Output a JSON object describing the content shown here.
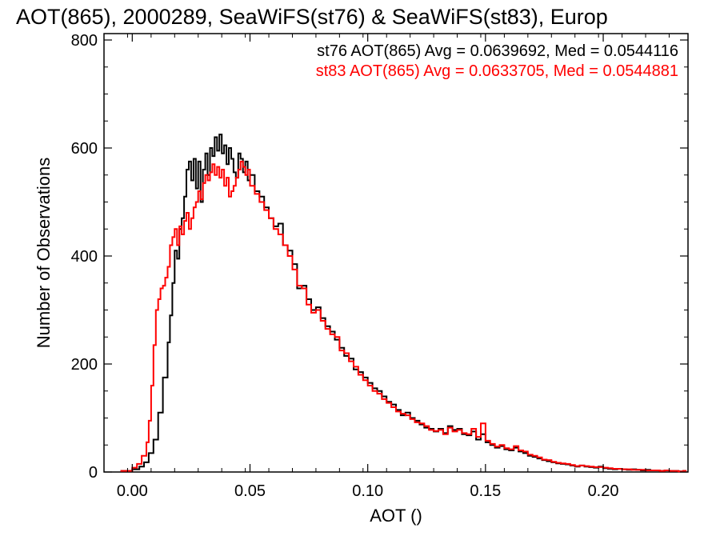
{
  "chart_data": {
    "type": "histogram-step",
    "title": "AOT(865), 2000289, SeaWiFS(st76) & SeaWiFS(st83), Europ",
    "xlabel": "AOT ()",
    "ylabel": "Number of Observations",
    "xlim": [
      -0.012,
      0.236
    ],
    "ylim": [
      0,
      800
    ],
    "xticks": [
      0.0,
      0.05,
      0.1,
      0.15,
      0.2
    ],
    "xtick_labels": [
      "0.00",
      "0.05",
      "0.10",
      "0.15",
      "0.20"
    ],
    "yticks": [
      0,
      200,
      400,
      600,
      800
    ],
    "ytick_labels": [
      "0",
      "200",
      "400",
      "600",
      "800"
    ],
    "legend_placement": "top-right",
    "grid": false,
    "colors": {
      "axes": "#000000"
    },
    "series": [
      {
        "name": "st76 AOT(865) Avg = 0.0639692, Med = 0.0544116",
        "color": "#000000",
        "points": [
          [
            -0.005,
            2
          ],
          [
            0.0,
            5
          ],
          [
            0.003,
            10
          ],
          [
            0.005,
            18
          ],
          [
            0.007,
            35
          ],
          [
            0.009,
            60
          ],
          [
            0.011,
            110
          ],
          [
            0.013,
            175
          ],
          [
            0.015,
            240
          ],
          [
            0.016,
            290
          ],
          [
            0.017,
            350
          ],
          [
            0.018,
            410
          ],
          [
            0.019,
            395
          ],
          [
            0.02,
            450
          ],
          [
            0.021,
            470
          ],
          [
            0.022,
            510
          ],
          [
            0.023,
            560
          ],
          [
            0.024,
            575
          ],
          [
            0.025,
            540
          ],
          [
            0.026,
            580
          ],
          [
            0.027,
            525
          ],
          [
            0.028,
            575
          ],
          [
            0.029,
            500
          ],
          [
            0.03,
            560
          ],
          [
            0.031,
            590
          ],
          [
            0.032,
            550
          ],
          [
            0.033,
            600
          ],
          [
            0.034,
            585
          ],
          [
            0.035,
            620
          ],
          [
            0.036,
            595
          ],
          [
            0.037,
            625
          ],
          [
            0.038,
            590
          ],
          [
            0.039,
            605
          ],
          [
            0.04,
            570
          ],
          [
            0.041,
            600
          ],
          [
            0.042,
            580
          ],
          [
            0.043,
            555
          ],
          [
            0.044,
            545
          ],
          [
            0.045,
            590
          ],
          [
            0.046,
            580
          ],
          [
            0.047,
            555
          ],
          [
            0.048,
            575
          ],
          [
            0.049,
            540
          ],
          [
            0.05,
            550
          ],
          [
            0.052,
            520
          ],
          [
            0.054,
            510
          ],
          [
            0.056,
            490
          ],
          [
            0.058,
            470
          ],
          [
            0.06,
            455
          ],
          [
            0.062,
            460
          ],
          [
            0.064,
            420
          ],
          [
            0.066,
            410
          ],
          [
            0.068,
            385
          ],
          [
            0.07,
            340
          ],
          [
            0.072,
            345
          ],
          [
            0.074,
            320
          ],
          [
            0.076,
            300
          ],
          [
            0.078,
            305
          ],
          [
            0.08,
            285
          ],
          [
            0.082,
            270
          ],
          [
            0.084,
            260
          ],
          [
            0.086,
            245
          ],
          [
            0.088,
            230
          ],
          [
            0.09,
            215
          ],
          [
            0.092,
            210
          ],
          [
            0.094,
            190
          ],
          [
            0.096,
            185
          ],
          [
            0.098,
            175
          ],
          [
            0.1,
            165
          ],
          [
            0.102,
            155
          ],
          [
            0.104,
            150
          ],
          [
            0.106,
            140
          ],
          [
            0.108,
            130
          ],
          [
            0.11,
            125
          ],
          [
            0.112,
            115
          ],
          [
            0.114,
            105
          ],
          [
            0.116,
            110
          ],
          [
            0.118,
            100
          ],
          [
            0.12,
            95
          ],
          [
            0.122,
            88
          ],
          [
            0.124,
            82
          ],
          [
            0.126,
            80
          ],
          [
            0.128,
            75
          ],
          [
            0.13,
            80
          ],
          [
            0.132,
            72
          ],
          [
            0.134,
            85
          ],
          [
            0.136,
            78
          ],
          [
            0.138,
            80
          ],
          [
            0.14,
            70
          ],
          [
            0.142,
            68
          ],
          [
            0.144,
            75
          ],
          [
            0.146,
            60
          ],
          [
            0.148,
            70
          ],
          [
            0.15,
            55
          ],
          [
            0.152,
            50
          ],
          [
            0.154,
            45
          ],
          [
            0.156,
            48
          ],
          [
            0.158,
            42
          ],
          [
            0.16,
            40
          ],
          [
            0.162,
            45
          ],
          [
            0.164,
            38
          ],
          [
            0.166,
            35
          ],
          [
            0.168,
            30
          ],
          [
            0.17,
            28
          ],
          [
            0.172,
            25
          ],
          [
            0.174,
            22
          ],
          [
            0.176,
            20
          ],
          [
            0.178,
            18
          ],
          [
            0.18,
            16
          ],
          [
            0.182,
            15
          ],
          [
            0.184,
            14
          ],
          [
            0.186,
            12
          ],
          [
            0.188,
            10
          ],
          [
            0.19,
            12
          ],
          [
            0.192,
            10
          ],
          [
            0.194,
            9
          ],
          [
            0.196,
            8
          ],
          [
            0.198,
            10
          ],
          [
            0.2,
            7
          ],
          [
            0.202,
            6
          ],
          [
            0.204,
            5
          ],
          [
            0.206,
            6
          ],
          [
            0.208,
            5
          ],
          [
            0.21,
            4
          ],
          [
            0.212,
            5
          ],
          [
            0.214,
            4
          ],
          [
            0.216,
            3
          ],
          [
            0.218,
            4
          ],
          [
            0.22,
            3
          ],
          [
            0.222,
            3
          ],
          [
            0.224,
            2
          ],
          [
            0.226,
            3
          ],
          [
            0.228,
            2
          ],
          [
            0.23,
            2
          ],
          [
            0.232,
            1
          ],
          [
            0.234,
            2
          ]
        ]
      },
      {
        "name": "st83 AOT(865) Avg = 0.0633705, Med = 0.0544881",
        "color": "#ff0000",
        "points": [
          [
            -0.005,
            2
          ],
          [
            0.0,
            8
          ],
          [
            0.002,
            15
          ],
          [
            0.004,
            30
          ],
          [
            0.006,
            55
          ],
          [
            0.007,
            95
          ],
          [
            0.008,
            160
          ],
          [
            0.009,
            235
          ],
          [
            0.01,
            300
          ],
          [
            0.011,
            320
          ],
          [
            0.012,
            340
          ],
          [
            0.013,
            345
          ],
          [
            0.014,
            360
          ],
          [
            0.015,
            380
          ],
          [
            0.016,
            420
          ],
          [
            0.017,
            435
          ],
          [
            0.018,
            450
          ],
          [
            0.019,
            420
          ],
          [
            0.02,
            455
          ],
          [
            0.021,
            440
          ],
          [
            0.022,
            465
          ],
          [
            0.023,
            480
          ],
          [
            0.024,
            450
          ],
          [
            0.025,
            470
          ],
          [
            0.026,
            490
          ],
          [
            0.027,
            500
          ],
          [
            0.028,
            520
          ],
          [
            0.029,
            505
          ],
          [
            0.03,
            535
          ],
          [
            0.031,
            550
          ],
          [
            0.032,
            540
          ],
          [
            0.033,
            555
          ],
          [
            0.034,
            570
          ],
          [
            0.035,
            550
          ],
          [
            0.036,
            565
          ],
          [
            0.037,
            545
          ],
          [
            0.038,
            560
          ],
          [
            0.039,
            530
          ],
          [
            0.04,
            545
          ],
          [
            0.041,
            510
          ],
          [
            0.042,
            520
          ],
          [
            0.043,
            530
          ],
          [
            0.044,
            545
          ],
          [
            0.045,
            560
          ],
          [
            0.046,
            575
          ],
          [
            0.047,
            565
          ],
          [
            0.048,
            550
          ],
          [
            0.049,
            560
          ],
          [
            0.05,
            530
          ],
          [
            0.052,
            515
          ],
          [
            0.054,
            500
          ],
          [
            0.056,
            485
          ],
          [
            0.058,
            470
          ],
          [
            0.06,
            450
          ],
          [
            0.062,
            440
          ],
          [
            0.064,
            420
          ],
          [
            0.066,
            400
          ],
          [
            0.068,
            375
          ],
          [
            0.07,
            345
          ],
          [
            0.072,
            340
          ],
          [
            0.074,
            310
          ],
          [
            0.076,
            295
          ],
          [
            0.078,
            300
          ],
          [
            0.08,
            280
          ],
          [
            0.082,
            265
          ],
          [
            0.084,
            255
          ],
          [
            0.086,
            250
          ],
          [
            0.088,
            225
          ],
          [
            0.09,
            220
          ],
          [
            0.092,
            205
          ],
          [
            0.094,
            195
          ],
          [
            0.096,
            180
          ],
          [
            0.098,
            170
          ],
          [
            0.1,
            160
          ],
          [
            0.102,
            150
          ],
          [
            0.104,
            145
          ],
          [
            0.106,
            135
          ],
          [
            0.108,
            128
          ],
          [
            0.11,
            120
          ],
          [
            0.112,
            112
          ],
          [
            0.114,
            108
          ],
          [
            0.116,
            105
          ],
          [
            0.118,
            98
          ],
          [
            0.12,
            92
          ],
          [
            0.122,
            90
          ],
          [
            0.124,
            85
          ],
          [
            0.126,
            78
          ],
          [
            0.128,
            76
          ],
          [
            0.13,
            78
          ],
          [
            0.132,
            70
          ],
          [
            0.134,
            82
          ],
          [
            0.136,
            75
          ],
          [
            0.138,
            78
          ],
          [
            0.14,
            72
          ],
          [
            0.142,
            70
          ],
          [
            0.144,
            80
          ],
          [
            0.146,
            65
          ],
          [
            0.148,
            90
          ],
          [
            0.15,
            58
          ],
          [
            0.152,
            52
          ],
          [
            0.154,
            47
          ],
          [
            0.156,
            50
          ],
          [
            0.158,
            44
          ],
          [
            0.16,
            42
          ],
          [
            0.162,
            48
          ],
          [
            0.164,
            40
          ],
          [
            0.166,
            38
          ],
          [
            0.168,
            32
          ],
          [
            0.17,
            30
          ],
          [
            0.172,
            27
          ],
          [
            0.174,
            23
          ],
          [
            0.176,
            22
          ],
          [
            0.178,
            19
          ],
          [
            0.18,
            17
          ],
          [
            0.182,
            16
          ],
          [
            0.184,
            15
          ],
          [
            0.186,
            13
          ],
          [
            0.188,
            11
          ],
          [
            0.19,
            12
          ],
          [
            0.192,
            11
          ],
          [
            0.194,
            10
          ],
          [
            0.196,
            9
          ],
          [
            0.198,
            9
          ],
          [
            0.2,
            8
          ],
          [
            0.202,
            7
          ],
          [
            0.204,
            6
          ],
          [
            0.206,
            6
          ],
          [
            0.208,
            5
          ],
          [
            0.21,
            5
          ],
          [
            0.212,
            4
          ],
          [
            0.214,
            4
          ],
          [
            0.216,
            4
          ],
          [
            0.218,
            3
          ],
          [
            0.22,
            3
          ],
          [
            0.222,
            3
          ],
          [
            0.224,
            2
          ],
          [
            0.226,
            3
          ],
          [
            0.228,
            2
          ],
          [
            0.23,
            2
          ],
          [
            0.232,
            1
          ],
          [
            0.234,
            2
          ]
        ]
      }
    ]
  }
}
